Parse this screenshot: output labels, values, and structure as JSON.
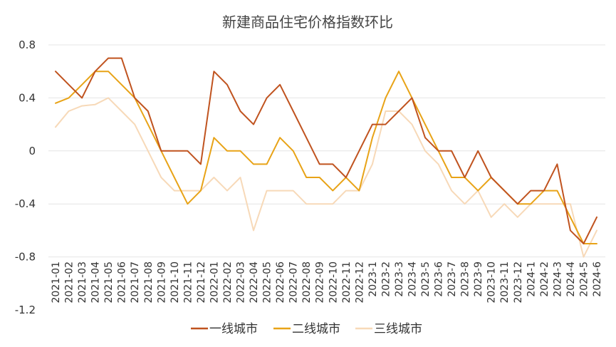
{
  "chart_data": {
    "type": "line",
    "title": "新建商品住宅价格指数环比",
    "xlabel": "",
    "ylabel": "",
    "ylim": [
      -1.2,
      0.8
    ],
    "yticks": [
      "0.8",
      "0.4",
      "0",
      "-0.4",
      "-0.8",
      "-1.2"
    ],
    "ytick_values": [
      0.8,
      0.4,
      0,
      -0.4,
      -0.8,
      -1.2
    ],
    "grid": true,
    "legend_position": "bottom",
    "categories": [
      "2021-01",
      "2021-02",
      "2021-03",
      "2021-04",
      "2021-05",
      "2021-06",
      "2021-07",
      "2021-08",
      "2021-09",
      "2021-10",
      "2021-11",
      "2021-12",
      "2022-01",
      "2022-02",
      "2022-03",
      "2022-04",
      "2022-05",
      "2022-06",
      "2022-07",
      "2022-08",
      "2022-09",
      "2022-10",
      "2022-11",
      "2022-12",
      "2023-1",
      "2023-2",
      "2023-3",
      "2023-4",
      "2023-5",
      "2023-6",
      "2023-7",
      "2023-8",
      "2023-9",
      "2023-10",
      "2023-11",
      "2023-12",
      "2024-1",
      "2024-2",
      "2024-3",
      "2024-4",
      "2024-5",
      "2024-6"
    ],
    "series": [
      {
        "name": "一线城市",
        "color": "#c0531f",
        "values": [
          0.6,
          0.5,
          0.4,
          0.6,
          0.7,
          0.7,
          0.4,
          0.3,
          0,
          0,
          0,
          -0.1,
          0.6,
          0.5,
          0.3,
          0.2,
          0.4,
          0.5,
          0.3,
          0.1,
          -0.1,
          -0.1,
          -0.2,
          0,
          0.2,
          0.2,
          0.3,
          0.4,
          0.1,
          0,
          0,
          -0.2,
          0,
          -0.2,
          -0.3,
          -0.4,
          -0.3,
          -0.3,
          -0.1,
          -0.6,
          -0.7,
          -0.5
        ]
      },
      {
        "name": "二线城市",
        "color": "#e8a317",
        "values": [
          0.36,
          0.4,
          0.5,
          0.6,
          0.6,
          0.5,
          0.4,
          0.2,
          0,
          -0.2,
          -0.4,
          -0.3,
          0.1,
          0,
          0,
          -0.1,
          -0.1,
          0.1,
          0,
          -0.2,
          -0.2,
          -0.3,
          -0.2,
          -0.3,
          0.1,
          0.4,
          0.6,
          0.4,
          0.2,
          0,
          -0.2,
          -0.2,
          -0.3,
          -0.2,
          -0.3,
          -0.4,
          -0.4,
          -0.3,
          -0.3,
          -0.5,
          -0.7,
          -0.7
        ]
      },
      {
        "name": "三线城市",
        "color": "#f7d9b8",
        "values": [
          0.18,
          0.3,
          0.34,
          0.35,
          0.4,
          0.3,
          0.2,
          0,
          -0.2,
          -0.3,
          -0.3,
          -0.3,
          -0.2,
          -0.3,
          -0.2,
          -0.6,
          -0.3,
          -0.3,
          -0.3,
          -0.4,
          -0.4,
          -0.4,
          -0.3,
          -0.3,
          -0.1,
          0.3,
          0.3,
          0.2,
          0,
          -0.1,
          -0.3,
          -0.4,
          -0.3,
          -0.5,
          -0.4,
          -0.5,
          -0.4,
          -0.4,
          -0.4,
          -0.4,
          -0.8,
          -0.6
        ]
      }
    ]
  }
}
